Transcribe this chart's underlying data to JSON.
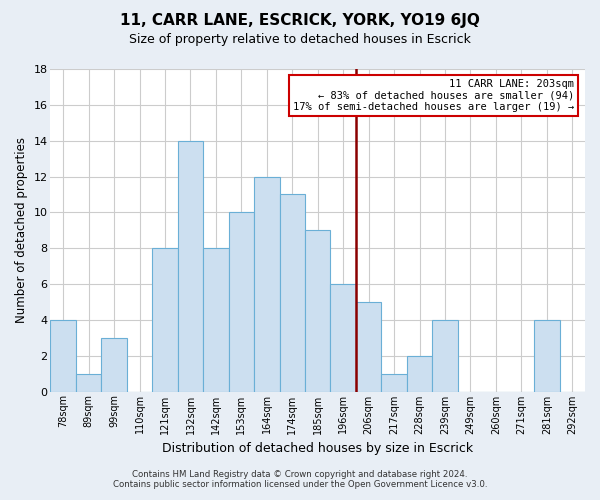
{
  "title": "11, CARR LANE, ESCRICK, YORK, YO19 6JQ",
  "subtitle": "Size of property relative to detached houses in Escrick",
  "xlabel": "Distribution of detached houses by size in Escrick",
  "ylabel": "Number of detached properties",
  "bin_labels": [
    "78sqm",
    "89sqm",
    "99sqm",
    "110sqm",
    "121sqm",
    "132sqm",
    "142sqm",
    "153sqm",
    "164sqm",
    "174sqm",
    "185sqm",
    "196sqm",
    "206sqm",
    "217sqm",
    "228sqm",
    "239sqm",
    "249sqm",
    "260sqm",
    "271sqm",
    "281sqm",
    "292sqm"
  ],
  "bar_values": [
    4,
    1,
    3,
    0,
    8,
    14,
    8,
    10,
    12,
    11,
    9,
    6,
    5,
    1,
    2,
    4,
    0,
    0,
    0,
    4,
    0
  ],
  "bar_color": "#ccdff0",
  "bar_edge_color": "#6aafd6",
  "vline_x": 12,
  "vline_color": "#8b0000",
  "ylim": [
    0,
    18
  ],
  "yticks": [
    0,
    2,
    4,
    6,
    8,
    10,
    12,
    14,
    16,
    18
  ],
  "annotation_title": "11 CARR LANE: 203sqm",
  "annotation_line1": "← 83% of detached houses are smaller (94)",
  "annotation_line2": "17% of semi-detached houses are larger (19) →",
  "annotation_box_facecolor": "#ffffff",
  "annotation_box_edgecolor": "#cc0000",
  "footer_line1": "Contains HM Land Registry data © Crown copyright and database right 2024.",
  "footer_line2": "Contains public sector information licensed under the Open Government Licence v3.0.",
  "plot_bg_color": "#ffffff",
  "fig_bg_color": "#e8eef5",
  "grid_color": "#cccccc",
  "title_fontsize": 11,
  "subtitle_fontsize": 9
}
